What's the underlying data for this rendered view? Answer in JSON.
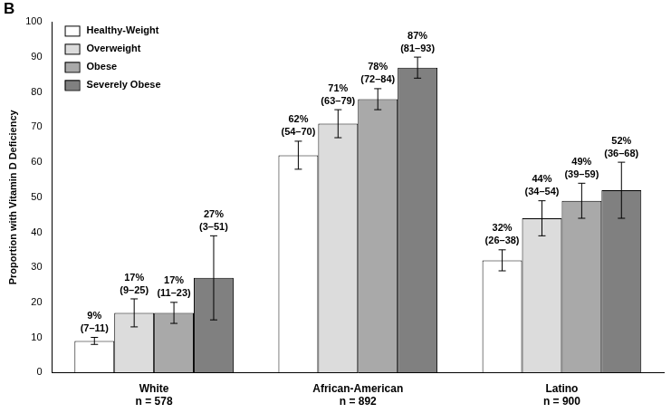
{
  "chart_data": {
    "type": "bar",
    "title": "B",
    "y_label": "Proportion with Vitamin D Deficiency",
    "categories": [
      "White",
      "African-American",
      "Latino"
    ],
    "category_subtitles": [
      "n = 578",
      "n = 892",
      "n = 900"
    ],
    "series": [
      {
        "name": "Healthy-Weight",
        "color": "#ffffff",
        "values": [
          9,
          62,
          32
        ],
        "value_labels": [
          "9%",
          "62%",
          "32%"
        ],
        "ci_labels": [
          "(7–11)",
          "(54–70)",
          "(26–38)"
        ],
        "error_low": [
          8,
          58,
          29
        ],
        "error_high": [
          10,
          66,
          35
        ]
      },
      {
        "name": "Overweight",
        "color": "#dcdcdc",
        "values": [
          17,
          71,
          44
        ],
        "value_labels": [
          "17%",
          "71%",
          "44%"
        ],
        "ci_labels": [
          "(9–25)",
          "(63–79)",
          "(34–54)"
        ],
        "error_low": [
          13,
          67,
          39
        ],
        "error_high": [
          21,
          75,
          49
        ]
      },
      {
        "name": "Obese",
        "color": "#a9a9a9",
        "values": [
          17,
          78,
          49
        ],
        "value_labels": [
          "17%",
          "78%",
          "49%"
        ],
        "ci_labels": [
          "(11–23)",
          "(72–84)",
          "(39–59)"
        ],
        "error_low": [
          14,
          75,
          44
        ],
        "error_high": [
          20,
          81,
          54
        ]
      },
      {
        "name": "Severely Obese",
        "color": "#808080",
        "values": [
          27,
          87,
          52
        ],
        "value_labels": [
          "27%",
          "87%",
          "52%"
        ],
        "ci_labels": [
          "(3–51)",
          "(81–93)",
          "(36–68)"
        ],
        "error_low": [
          15,
          84,
          44
        ],
        "error_high": [
          39,
          90,
          60
        ]
      }
    ],
    "ylim": [
      0,
      100
    ],
    "yticks": [
      0,
      10,
      20,
      30,
      40,
      50,
      60,
      70,
      80,
      90,
      100
    ],
    "grid": false,
    "legend": "upper left",
    "data_labels": true
  }
}
